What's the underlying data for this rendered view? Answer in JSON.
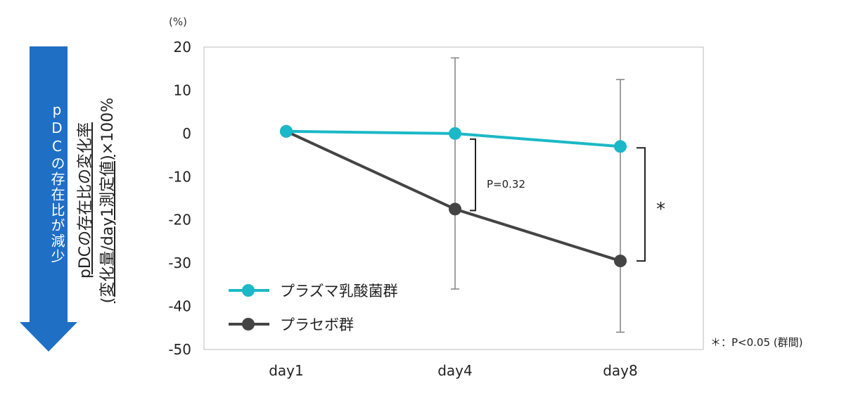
{
  "side_arrow": {
    "label": "pDCの存在比が減少",
    "color": "#1f6fc5"
  },
  "y_title": {
    "line1": "pDCの存在比の変化率",
    "line2_underlined": "(変化量/day1測定値)",
    "line2_rest": "×100%"
  },
  "unit_label": "(%)",
  "footnote": "＊：P<0.05 (群間)",
  "annotations": {
    "p_value": "P=0.32",
    "significance": "*"
  },
  "chart_data": {
    "type": "line",
    "categories": [
      "day1",
      "day4",
      "day8"
    ],
    "ylim": [
      -50,
      20
    ],
    "yticks": [
      20,
      10,
      0,
      -10,
      -20,
      -30,
      -40,
      -50
    ],
    "grid": false,
    "legend_placement": "bottom-left",
    "series": [
      {
        "name": "プラズマ乳酸菌群",
        "values": [
          0.5,
          0,
          -3
        ],
        "color": "#1bb8c7",
        "error": [
          null,
          null,
          null
        ]
      },
      {
        "name": "プラセボ群",
        "values": [
          0.5,
          -17.5,
          -29.5
        ],
        "color": "#444444",
        "error_low": [
          null,
          -36,
          -46
        ],
        "error_high": [
          null,
          17.5,
          12.5
        ]
      }
    ]
  }
}
